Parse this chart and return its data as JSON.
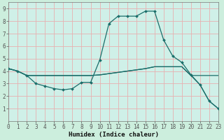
{
  "title": "",
  "xlabel": "Humidex (Indice chaleur)",
  "xlim": [
    0,
    23
  ],
  "ylim": [
    0,
    9.5
  ],
  "xticks": [
    0,
    1,
    2,
    3,
    4,
    5,
    6,
    7,
    8,
    9,
    10,
    11,
    12,
    13,
    14,
    15,
    16,
    17,
    18,
    19,
    20,
    21,
    22,
    23
  ],
  "yticks": [
    1,
    2,
    3,
    4,
    5,
    6,
    7,
    8,
    9
  ],
  "bg_color": "#cceedd",
  "plot_bg": "#cff0e8",
  "line_color": "#1a6e6a",
  "grid_color": "#e8b0b0",
  "line1_x": [
    0,
    1,
    2,
    3,
    4,
    5,
    6,
    7,
    8,
    9,
    10,
    11,
    12,
    13,
    14,
    15,
    16,
    17,
    18,
    19,
    20,
    21,
    22,
    23
  ],
  "line1_y": [
    4.2,
    4.0,
    3.65,
    3.0,
    2.8,
    2.6,
    2.5,
    2.6,
    3.1,
    3.1,
    4.9,
    7.8,
    8.4,
    8.4,
    8.4,
    8.8,
    8.8,
    6.5,
    5.2,
    4.7,
    3.7,
    2.9,
    1.6,
    1.0
  ],
  "line2_x": [
    0,
    1,
    2,
    3,
    4,
    5,
    6,
    7,
    8,
    9,
    10,
    11,
    12,
    13,
    14,
    15,
    16,
    17,
    18,
    19,
    20,
    21,
    22,
    23
  ],
  "line2_y": [
    4.2,
    4.0,
    3.65,
    3.65,
    3.65,
    3.65,
    3.65,
    3.65,
    3.65,
    3.65,
    3.7,
    3.8,
    3.9,
    4.0,
    4.1,
    4.2,
    4.35,
    4.35,
    4.35,
    4.35,
    3.65,
    3.65,
    3.65,
    3.65
  ],
  "line3_x": [
    0,
    1,
    2,
    3,
    4,
    5,
    6,
    7,
    8,
    9,
    10,
    11,
    12,
    13,
    14,
    15,
    16,
    17,
    18,
    19,
    20,
    21,
    22,
    23
  ],
  "line3_y": [
    4.2,
    4.0,
    3.65,
    3.65,
    3.65,
    3.65,
    3.65,
    3.65,
    3.65,
    3.65,
    3.7,
    3.8,
    3.9,
    4.0,
    4.1,
    4.2,
    4.35,
    4.35,
    4.35,
    4.35,
    3.65,
    2.9,
    1.6,
    1.0
  ],
  "tick_fontsize": 5.5,
  "xlabel_fontsize": 6.5,
  "xlabel_fontweight": "bold"
}
